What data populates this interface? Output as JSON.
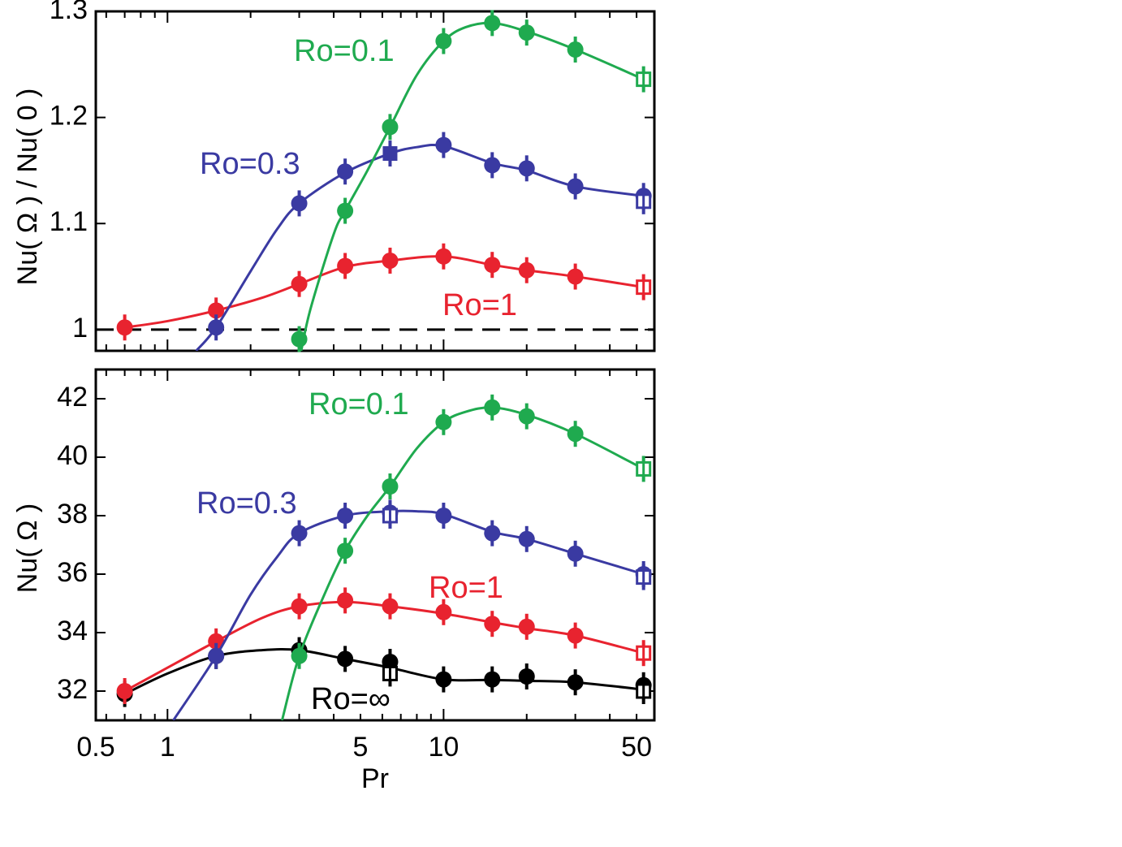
{
  "chart_data": [
    {
      "type": "line",
      "ylabel": "Nu( Ω ) / Nu( 0 )",
      "xscale": "log",
      "xlim": [
        0.55,
        58
      ],
      "ylim": [
        0.98,
        1.3
      ],
      "yticks": [
        1,
        1.1,
        1.2,
        1.3
      ],
      "ytick_labels": [
        "1",
        "1.1",
        "1.2",
        "1.3"
      ],
      "reference_line": {
        "y": 1,
        "style": "dashed",
        "color": "#000000"
      },
      "series": [
        {
          "name": "Ro=1",
          "color": "#e8232f",
          "points": [
            {
              "x": 0.7,
              "y": 1.002,
              "marker": "circle"
            },
            {
              "x": 1.5,
              "y": 1.018,
              "marker": "circle"
            },
            {
              "x": 3.0,
              "y": 1.043,
              "marker": "circle"
            },
            {
              "x": 4.4,
              "y": 1.06,
              "marker": "circle"
            },
            {
              "x": 6.4,
              "y": 1.065,
              "marker": "circle"
            },
            {
              "x": 10,
              "y": 1.069,
              "marker": "circle"
            },
            {
              "x": 15,
              "y": 1.061,
              "marker": "circle"
            },
            {
              "x": 20,
              "y": 1.056,
              "marker": "circle"
            },
            {
              "x": 30,
              "y": 1.05,
              "marker": "circle"
            },
            {
              "x": 53,
              "y": 1.04,
              "marker": "open-square"
            }
          ],
          "fit": [
            [
              0.7,
              1.002
            ],
            [
              1.0,
              1.008
            ],
            [
              1.5,
              1.018
            ],
            [
              2.2,
              1.03
            ],
            [
              3.0,
              1.043
            ],
            [
              4.4,
              1.059
            ],
            [
              6.4,
              1.065
            ],
            [
              10,
              1.069
            ],
            [
              15,
              1.061
            ],
            [
              20,
              1.056
            ],
            [
              30,
              1.05
            ],
            [
              53,
              1.04
            ]
          ]
        },
        {
          "name": "Ro=0.3",
          "color": "#3a3aa2",
          "points": [
            {
              "x": 1.5,
              "y": 1.002,
              "marker": "circle"
            },
            {
              "x": 3.0,
              "y": 1.119,
              "marker": "circle"
            },
            {
              "x": 4.4,
              "y": 1.149,
              "marker": "circle"
            },
            {
              "x": 6.4,
              "y": 1.166,
              "marker": "filled-square"
            },
            {
              "x": 10,
              "y": 1.174,
              "marker": "circle"
            },
            {
              "x": 15,
              "y": 1.155,
              "marker": "circle"
            },
            {
              "x": 20,
              "y": 1.152,
              "marker": "circle"
            },
            {
              "x": 30,
              "y": 1.135,
              "marker": "circle"
            },
            {
              "x": 53,
              "y": 1.126,
              "marker": "circle"
            },
            {
              "x": 53,
              "y": 1.121,
              "marker": "open-square"
            }
          ],
          "fit": [
            [
              1.27,
              0.98
            ],
            [
              1.5,
              1.002
            ],
            [
              2.0,
              1.055
            ],
            [
              2.5,
              1.095
            ],
            [
              3.0,
              1.119
            ],
            [
              4.4,
              1.148
            ],
            [
              6.4,
              1.166
            ],
            [
              8,
              1.172
            ],
            [
              10,
              1.173
            ],
            [
              15,
              1.157
            ],
            [
              20,
              1.15
            ],
            [
              30,
              1.135
            ],
            [
              53,
              1.126
            ]
          ]
        },
        {
          "name": "Ro=0.1",
          "color": "#1faa4f",
          "points": [
            {
              "x": 3.0,
              "y": 0.991,
              "marker": "circle"
            },
            {
              "x": 4.4,
              "y": 1.112,
              "marker": "circle"
            },
            {
              "x": 6.4,
              "y": 1.191,
              "marker": "circle"
            },
            {
              "x": 10,
              "y": 1.272,
              "marker": "circle"
            },
            {
              "x": 15,
              "y": 1.289,
              "marker": "circle"
            },
            {
              "x": 20,
              "y": 1.28,
              "marker": "circle"
            },
            {
              "x": 30,
              "y": 1.264,
              "marker": "circle"
            },
            {
              "x": 53,
              "y": 1.236,
              "marker": "open-square"
            }
          ],
          "fit": [
            [
              3.05,
              0.98
            ],
            [
              3.3,
              1.02
            ],
            [
              4.0,
              1.09
            ],
            [
              4.4,
              1.112
            ],
            [
              5.3,
              1.15
            ],
            [
              6.4,
              1.191
            ],
            [
              8,
              1.24
            ],
            [
              10,
              1.272
            ],
            [
              12,
              1.285
            ],
            [
              15,
              1.289
            ],
            [
              20,
              1.281
            ],
            [
              30,
              1.264
            ],
            [
              53,
              1.236
            ]
          ]
        }
      ],
      "labels": [
        {
          "text": "Ro=0.1",
          "color": "#1faa4f"
        },
        {
          "text": "Ro=0.3",
          "color": "#3a3aa2"
        },
        {
          "text": "Ro=1",
          "color": "#e8232f"
        }
      ]
    },
    {
      "type": "line",
      "xlabel": "Pr",
      "ylabel": "Nu( Ω )",
      "xscale": "log",
      "xlim": [
        0.55,
        58
      ],
      "ylim": [
        31,
        43
      ],
      "xticks": [
        0.5,
        1,
        5,
        10,
        50
      ],
      "xtick_labels": [
        "0.5",
        "1",
        "5",
        "10",
        "50"
      ],
      "yticks": [
        32,
        34,
        36,
        38,
        40,
        42
      ],
      "ytick_labels": [
        "32",
        "34",
        "36",
        "38",
        "40",
        "42"
      ],
      "series": [
        {
          "name": "Ro=∞",
          "color": "#000000",
          "points": [
            {
              "x": 0.7,
              "y": 31.9,
              "marker": "circle"
            },
            {
              "x": 1.5,
              "y": 33.2,
              "marker": "circle"
            },
            {
              "x": 3.0,
              "y": 33.4,
              "marker": "circle"
            },
            {
              "x": 4.4,
              "y": 33.1,
              "marker": "circle"
            },
            {
              "x": 6.4,
              "y": 33.0,
              "marker": "circle"
            },
            {
              "x": 6.4,
              "y": 32.6,
              "marker": "open-square"
            },
            {
              "x": 10,
              "y": 32.4,
              "marker": "circle"
            },
            {
              "x": 15,
              "y": 32.4,
              "marker": "circle"
            },
            {
              "x": 20,
              "y": 32.5,
              "marker": "circle"
            },
            {
              "x": 30,
              "y": 32.3,
              "marker": "circle"
            },
            {
              "x": 53,
              "y": 32.2,
              "marker": "circle"
            },
            {
              "x": 53,
              "y": 32.0,
              "marker": "open-square"
            }
          ],
          "fit": [
            [
              0.7,
              31.9
            ],
            [
              1.0,
              32.6
            ],
            [
              1.5,
              33.2
            ],
            [
              2.2,
              33.4
            ],
            [
              3.0,
              33.4
            ],
            [
              4.4,
              33.1
            ],
            [
              6.4,
              32.8
            ],
            [
              10,
              32.4
            ],
            [
              15,
              32.38
            ],
            [
              20,
              32.35
            ],
            [
              30,
              32.3
            ],
            [
              53,
              32.05
            ]
          ]
        },
        {
          "name": "Ro=1",
          "color": "#e8232f",
          "points": [
            {
              "x": 0.7,
              "y": 32.0,
              "marker": "circle"
            },
            {
              "x": 1.5,
              "y": 33.7,
              "marker": "circle"
            },
            {
              "x": 3.0,
              "y": 34.9,
              "marker": "circle"
            },
            {
              "x": 4.4,
              "y": 35.1,
              "marker": "circle"
            },
            {
              "x": 6.4,
              "y": 34.9,
              "marker": "circle"
            },
            {
              "x": 10,
              "y": 34.7,
              "marker": "circle"
            },
            {
              "x": 15,
              "y": 34.3,
              "marker": "circle"
            },
            {
              "x": 20,
              "y": 34.2,
              "marker": "circle"
            },
            {
              "x": 30,
              "y": 33.9,
              "marker": "circle"
            },
            {
              "x": 53,
              "y": 33.3,
              "marker": "open-square"
            }
          ],
          "fit": [
            [
              0.7,
              32.0
            ],
            [
              1.0,
              32.8
            ],
            [
              1.5,
              33.7
            ],
            [
              2.2,
              34.5
            ],
            [
              3.0,
              34.9
            ],
            [
              4.4,
              35.05
            ],
            [
              6.4,
              34.9
            ],
            [
              10,
              34.65
            ],
            [
              15,
              34.35
            ],
            [
              20,
              34.15
            ],
            [
              30,
              33.9
            ],
            [
              53,
              33.3
            ]
          ]
        },
        {
          "name": "Ro=0.3",
          "color": "#3a3aa2",
          "points": [
            {
              "x": 1.5,
              "y": 33.2,
              "marker": "circle"
            },
            {
              "x": 3.0,
              "y": 37.4,
              "marker": "circle"
            },
            {
              "x": 4.4,
              "y": 38.0,
              "marker": "circle"
            },
            {
              "x": 6.4,
              "y": 38.1,
              "marker": "circle"
            },
            {
              "x": 6.4,
              "y": 38.0,
              "marker": "open-square"
            },
            {
              "x": 10,
              "y": 38.0,
              "marker": "circle"
            },
            {
              "x": 15,
              "y": 37.4,
              "marker": "circle"
            },
            {
              "x": 20,
              "y": 37.2,
              "marker": "circle"
            },
            {
              "x": 30,
              "y": 36.7,
              "marker": "circle"
            },
            {
              "x": 53,
              "y": 36.0,
              "marker": "circle"
            },
            {
              "x": 53,
              "y": 35.9,
              "marker": "open-square"
            }
          ],
          "fit": [
            [
              1.05,
              31.0
            ],
            [
              1.5,
              33.2
            ],
            [
              2.0,
              35.3
            ],
            [
              2.5,
              36.6
            ],
            [
              3.0,
              37.4
            ],
            [
              4.4,
              38.0
            ],
            [
              6.4,
              38.15
            ],
            [
              8,
              38.15
            ],
            [
              10,
              38.05
            ],
            [
              15,
              37.45
            ],
            [
              20,
              37.2
            ],
            [
              30,
              36.7
            ],
            [
              53,
              36.0
            ]
          ]
        },
        {
          "name": "Ro=0.1",
          "color": "#1faa4f",
          "points": [
            {
              "x": 3.0,
              "y": 33.2,
              "marker": "circle"
            },
            {
              "x": 4.4,
              "y": 36.8,
              "marker": "circle"
            },
            {
              "x": 6.4,
              "y": 39.0,
              "marker": "circle"
            },
            {
              "x": 10,
              "y": 41.2,
              "marker": "circle"
            },
            {
              "x": 15,
              "y": 41.7,
              "marker": "circle"
            },
            {
              "x": 20,
              "y": 41.4,
              "marker": "circle"
            },
            {
              "x": 30,
              "y": 40.8,
              "marker": "circle"
            },
            {
              "x": 53,
              "y": 39.6,
              "marker": "open-square"
            }
          ],
          "fit": [
            [
              2.6,
              31.0
            ],
            [
              3.0,
              33.2
            ],
            [
              3.7,
              35.3
            ],
            [
              4.4,
              36.8
            ],
            [
              5.3,
              38.0
            ],
            [
              6.4,
              39.0
            ],
            [
              8,
              40.3
            ],
            [
              10,
              41.2
            ],
            [
              12,
              41.55
            ],
            [
              15,
              41.7
            ],
            [
              20,
              41.45
            ],
            [
              30,
              40.8
            ],
            [
              53,
              39.6
            ]
          ]
        }
      ],
      "labels": [
        {
          "text": "Ro=0.1",
          "color": "#1faa4f"
        },
        {
          "text": "Ro=0.3",
          "color": "#3a3aa2"
        },
        {
          "text": "Ro=1",
          "color": "#e8232f"
        },
        {
          "text": "Ro=∞",
          "color": "#000000"
        }
      ]
    }
  ]
}
